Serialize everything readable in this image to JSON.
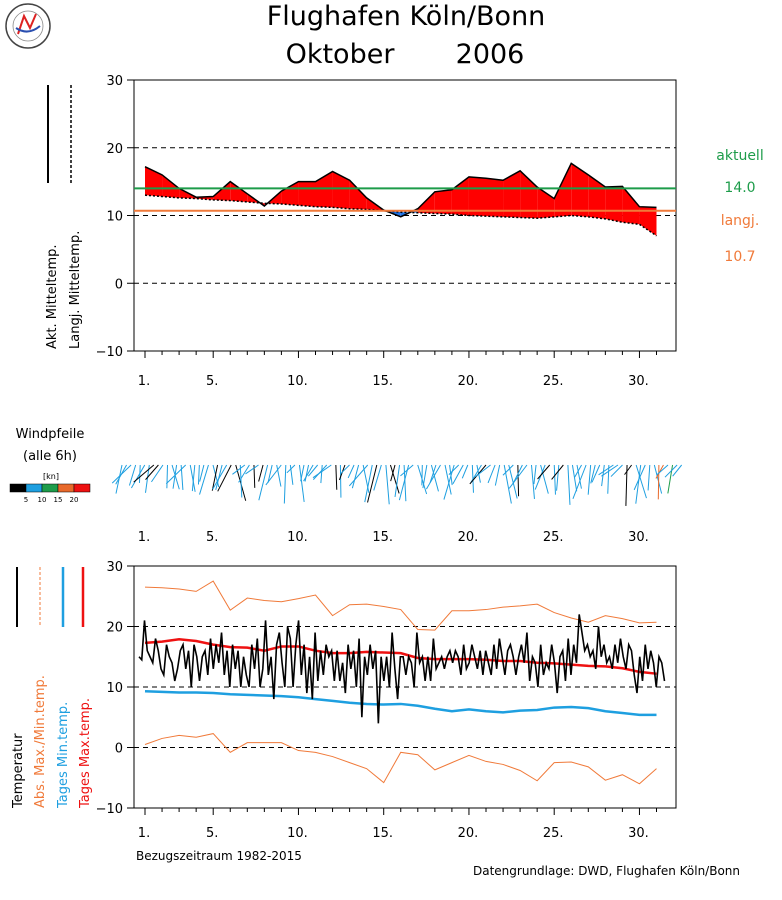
{
  "title": {
    "line1": "Flughafen Köln/Bonn",
    "line2": "Oktober",
    "year": "2006"
  },
  "days": [
    1,
    2,
    3,
    4,
    5,
    6,
    7,
    8,
    9,
    10,
    11,
    12,
    13,
    14,
    15,
    16,
    17,
    18,
    19,
    20,
    21,
    22,
    23,
    24,
    25,
    26,
    27,
    28,
    29,
    30,
    31
  ],
  "x_tick_labels": [
    "1.",
    "5.",
    "10.",
    "15.",
    "20.",
    "25.",
    "30."
  ],
  "x_tick_days": [
    1,
    5,
    10,
    15,
    20,
    25,
    30
  ],
  "chart_data": [
    {
      "type": "area",
      "ylabel_current": "Akt. Mitteltemp.",
      "ylabel_normal": "Langj. Mitteltemp.",
      "ylim": [
        -10,
        30
      ],
      "yticks": [
        "30",
        "20",
        "10",
        "0",
        "−10"
      ],
      "ytick_values": [
        30,
        20,
        10,
        0,
        -10
      ],
      "series": [
        {
          "name": "Akt. Mitteltemp.",
          "values": [
            17.2,
            16.0,
            14.0,
            12.7,
            12.8,
            15.0,
            13.2,
            11.4,
            13.6,
            15.0,
            15.0,
            16.5,
            15.2,
            12.6,
            10.8,
            9.8,
            11.0,
            13.5,
            13.8,
            15.7,
            15.5,
            15.2,
            16.6,
            14.2,
            12.5,
            17.7,
            16.0,
            14.2,
            14.3,
            11.3,
            11.2
          ]
        },
        {
          "name": "Langj. Mitteltemp.",
          "values": [
            13.0,
            12.8,
            12.6,
            12.5,
            12.3,
            12.2,
            12.0,
            11.8,
            11.7,
            11.5,
            11.3,
            11.2,
            11.0,
            10.9,
            10.7,
            10.5,
            10.4,
            10.3,
            10.2,
            10.0,
            9.9,
            9.8,
            9.7,
            9.6,
            9.8,
            10.0,
            9.8,
            9.5,
            9.0,
            8.7,
            7.0
          ]
        }
      ],
      "monthly_current_label": "aktuell",
      "monthly_current_value": "14.0",
      "monthly_current": 14.0,
      "monthly_normal_label": "langj.",
      "monthly_normal_value": "10.7",
      "monthly_normal": 10.7,
      "grid": "dashed"
    },
    {
      "type": "line",
      "ylabels": [
        "Temperatur",
        "Abs. Max./Min.temp.",
        "Tages Min.temp.",
        "Tages Max.temp."
      ],
      "ylim": [
        -10,
        30
      ],
      "yticks": [
        "30",
        "20",
        "10",
        "0",
        "−10"
      ],
      "ytick_values": [
        30,
        20,
        10,
        0,
        -10
      ],
      "temperature_6h": [
        15,
        14.5,
        21,
        16,
        15,
        14,
        18,
        16,
        13,
        12,
        17,
        15,
        14,
        11,
        13,
        16,
        17,
        13,
        16,
        10,
        17,
        15,
        11,
        15,
        16,
        12,
        18,
        13,
        17,
        14,
        19,
        12,
        16,
        10,
        17,
        13,
        16,
        10,
        15,
        12,
        10,
        17,
        13,
        18,
        10,
        13,
        21,
        12,
        15,
        8,
        17,
        19,
        14,
        10,
        20,
        18,
        10,
        17,
        21,
        12,
        17,
        9,
        15,
        8,
        19,
        11,
        16,
        12,
        17,
        15,
        16,
        11,
        16,
        11,
        14,
        9,
        17,
        13,
        16,
        10,
        18,
        5,
        15,
        12,
        17,
        13,
        16,
        4,
        15,
        11,
        15,
        10,
        19,
        13,
        8,
        15,
        15,
        12,
        15,
        14,
        10,
        19,
        14,
        15,
        11,
        15,
        11,
        18,
        13,
        14,
        15,
        13,
        15,
        16,
        14,
        16,
        15,
        12,
        17,
        13,
        14,
        17,
        15,
        13,
        16,
        12,
        16,
        14,
        12,
        17,
        13,
        18,
        15,
        12,
        16,
        17,
        15,
        12,
        15,
        17,
        14,
        19,
        11,
        15,
        14,
        10,
        17,
        12,
        14,
        13,
        17,
        14,
        9,
        15,
        16,
        11,
        18,
        12,
        17,
        14,
        22,
        19,
        16,
        17,
        15,
        16,
        13,
        20,
        15,
        17,
        14,
        15,
        13,
        17,
        14,
        18,
        15,
        13,
        17,
        16,
        12,
        9,
        15,
        11,
        17,
        13,
        16,
        14,
        10,
        15,
        14,
        11
      ],
      "series": [
        {
          "name": "Abs. Max./Min.temp.",
          "values": [
            26.5,
            26.4,
            26.2,
            25.8,
            27.5,
            22.7,
            24.7,
            24.3,
            24.1,
            24.6,
            25.2,
            21.8,
            23.6,
            23.7,
            23.3,
            22.8,
            19.5,
            19.4,
            22.6,
            22.6,
            22.8,
            23.2,
            23.4,
            23.7,
            22.3,
            21.4,
            20.7,
            21.8,
            21.3,
            20.6,
            20.7
          ]
        },
        {
          "name": "Abs. Max./Min.temp.",
          "values": [
            0.5,
            1.5,
            2.0,
            1.7,
            2.3,
            -0.8,
            0.8,
            0.8,
            0.8,
            -0.5,
            -0.8,
            -1.5,
            -2.5,
            -3.5,
            -5.8,
            -0.8,
            -1.2,
            -3.7,
            -2.5,
            -1.3,
            -2.3,
            -2.8,
            -3.8,
            -5.5,
            -2.5,
            -2.4,
            -3.2,
            -5.4,
            -4.5,
            -6.0,
            -3.5
          ]
        },
        {
          "name": "Tages Min.temp.",
          "values": [
            9.3,
            9.2,
            9.1,
            9.1,
            9.0,
            8.8,
            8.7,
            8.6,
            8.5,
            8.3,
            8.0,
            7.7,
            7.4,
            7.2,
            7.1,
            7.2,
            6.9,
            6.4,
            6.0,
            6.3,
            6.0,
            5.8,
            6.1,
            6.2,
            6.6,
            6.7,
            6.5,
            6.0,
            5.7,
            5.4,
            5.4
          ]
        },
        {
          "name": "Tages Max.temp.",
          "values": [
            17.3,
            17.5,
            17.9,
            17.6,
            17.0,
            16.6,
            16.5,
            16.0,
            16.7,
            16.7,
            16.0,
            15.6,
            15.6,
            15.8,
            15.7,
            15.6,
            14.8,
            14.6,
            14.6,
            14.6,
            14.5,
            14.3,
            14.3,
            14.0,
            13.9,
            13.7,
            13.5,
            13.4,
            13.1,
            12.5,
            12.2
          ]
        }
      ],
      "grid": "dashed"
    }
  ],
  "wind": {
    "label_line1": "Windpfeile",
    "label_line2": "(alle 6h)",
    "unit": "[kn]",
    "scale_labels": [
      "5",
      "10",
      "15",
      "20"
    ],
    "scale_colors": [
      "#000000",
      "#1e9fe0",
      "#1d9c4a",
      "#e8692b",
      "#ee1111"
    ]
  },
  "footer": {
    "reference_period": "Bezugszeitraum 1982-2015",
    "data_source": "Datengrundlage: DWD, Flughafen Köln/Bonn"
  },
  "colors": {
    "current": "#000000",
    "area_fill": "#ff0000",
    "monthly_current_line": "#1d9c4a",
    "monthly_normal_line": "#f07a3a",
    "abs_extremes": "#f07a3a",
    "daily_min": "#1e9fe0",
    "daily_max": "#ee1111",
    "gray_text": "#555555"
  }
}
